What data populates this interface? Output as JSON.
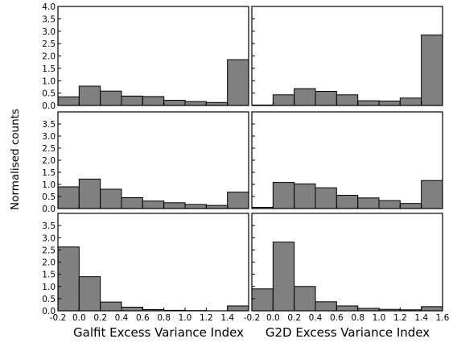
{
  "figure": {
    "ylabel": "Normalised counts",
    "xlabels": [
      "Galfit Excess Variance Index",
      "G2D Excess Variance Index"
    ],
    "bar_color": "#808080"
  },
  "chart_data": [
    {
      "type": "bar",
      "row": 0,
      "col": 0,
      "xlim": [
        -0.2,
        1.6
      ],
      "ylim": [
        0,
        4.0
      ],
      "bin_edges": [
        -0.2,
        0.0,
        0.2,
        0.4,
        0.6,
        0.8,
        1.0,
        1.2,
        1.4,
        1.6
      ],
      "values": [
        0.35,
        0.78,
        0.58,
        0.38,
        0.36,
        0.21,
        0.16,
        0.12,
        1.85
      ],
      "yticks": [
        "0.0",
        "0.5",
        "1.0",
        "1.5",
        "2.0",
        "2.5",
        "3.0",
        "3.5",
        "4.0"
      ],
      "xticks": []
    },
    {
      "type": "bar",
      "row": 0,
      "col": 1,
      "xlim": [
        -0.2,
        1.6
      ],
      "ylim": [
        0,
        4.0
      ],
      "bin_edges": [
        -0.2,
        0.0,
        0.2,
        0.4,
        0.6,
        0.8,
        1.0,
        1.2,
        1.4,
        1.6
      ],
      "values": [
        0.02,
        0.43,
        0.68,
        0.57,
        0.43,
        0.19,
        0.18,
        0.3,
        2.85
      ],
      "yticks": [],
      "xticks": []
    },
    {
      "type": "bar",
      "row": 1,
      "col": 0,
      "xlim": [
        -0.2,
        1.6
      ],
      "ylim": [
        0,
        4.0
      ],
      "bin_edges": [
        -0.2,
        0.0,
        0.2,
        0.4,
        0.6,
        0.8,
        1.0,
        1.2,
        1.4,
        1.6
      ],
      "values": [
        0.9,
        1.22,
        0.8,
        0.45,
        0.31,
        0.24,
        0.17,
        0.13,
        0.68
      ],
      "yticks": [
        "0.0",
        "0.5",
        "1.0",
        "1.5",
        "2.0",
        "2.5",
        "3.0",
        "3.5"
      ],
      "xticks": []
    },
    {
      "type": "bar",
      "row": 1,
      "col": 1,
      "xlim": [
        -0.2,
        1.6
      ],
      "ylim": [
        0,
        4.0
      ],
      "bin_edges": [
        -0.2,
        0.0,
        0.2,
        0.4,
        0.6,
        0.8,
        1.0,
        1.2,
        1.4,
        1.6
      ],
      "values": [
        0.05,
        1.08,
        1.02,
        0.86,
        0.55,
        0.44,
        0.33,
        0.21,
        1.16
      ],
      "yticks": [],
      "xticks": []
    },
    {
      "type": "bar",
      "row": 2,
      "col": 0,
      "xlim": [
        -0.2,
        1.6
      ],
      "ylim": [
        0,
        4.0
      ],
      "bin_edges": [
        -0.2,
        0.0,
        0.2,
        0.4,
        0.6,
        0.8,
        1.0,
        1.2,
        1.4,
        1.6
      ],
      "values": [
        2.62,
        1.4,
        0.36,
        0.15,
        0.05,
        0.02,
        0.01,
        0.0,
        0.2
      ],
      "yticks": [
        "0.0",
        "0.5",
        "1.0",
        "1.5",
        "2.0",
        "2.5",
        "3.0",
        "3.5"
      ],
      "xticks": [
        "-0.2",
        "0.0",
        "0.2",
        "0.4",
        "0.6",
        "0.8",
        "1.0",
        "1.2",
        "1.4"
      ]
    },
    {
      "type": "bar",
      "row": 2,
      "col": 1,
      "xlim": [
        -0.2,
        1.6
      ],
      "ylim": [
        0,
        4.0
      ],
      "bin_edges": [
        -0.2,
        0.0,
        0.2,
        0.4,
        0.6,
        0.8,
        1.0,
        1.2,
        1.4,
        1.6
      ],
      "values": [
        0.9,
        2.82,
        1.0,
        0.37,
        0.2,
        0.1,
        0.06,
        0.04,
        0.17
      ],
      "yticks": [],
      "xticks": [
        "-0.2",
        "0.0",
        "0.2",
        "0.4",
        "0.6",
        "0.8",
        "1.0",
        "1.2",
        "1.4",
        "1.6"
      ]
    }
  ]
}
